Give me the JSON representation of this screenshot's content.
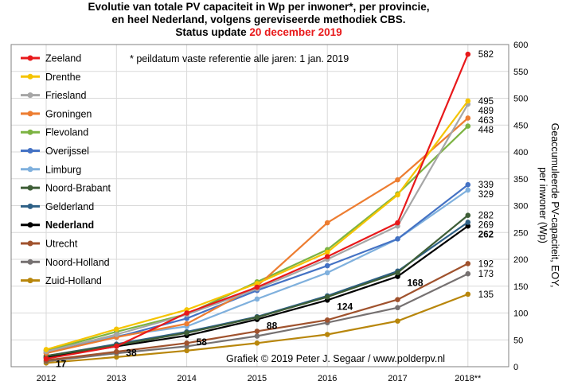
{
  "chart_data": {
    "type": "line",
    "title_lines": [
      "Evolutie van totale PV capaciteit in Wp per inwoner*, per provincie,",
      "en heel Nederland, volgens gereviseerde methodiek CBS.",
      "Status update "
    ],
    "title_date": "20 december 2019",
    "note": "* peildatum  vaste referentie alle jaren: 1 jan. 2019",
    "credit": "Grafiek  © 2019 Peter J. Segaar / www.polderpv.nl",
    "ylabel_lines": [
      "Geaccumuleerde  PV-capaciteit, EOY,",
      "per inwoner (Wp)"
    ],
    "x": [
      "2012",
      "2013",
      "2014",
      "2015",
      "2016",
      "2017",
      "2018**"
    ],
    "ylim": [
      0,
      600
    ],
    "yticks": [
      0,
      50,
      100,
      150,
      200,
      250,
      300,
      350,
      400,
      450,
      500,
      550,
      600
    ],
    "grid": true,
    "legend_position": "left",
    "series": [
      {
        "name": "Zeeland",
        "color": "#e8191b",
        "values": [
          15,
          38,
          100,
          148,
          205,
          268,
          582
        ],
        "end_label": "582"
      },
      {
        "name": "Drenthe",
        "color": "#f5c400",
        "values": [
          32,
          70,
          106,
          155,
          213,
          320,
          495
        ],
        "end_label": "495"
      },
      {
        "name": "Friesland",
        "color": "#a6a6a6",
        "values": [
          28,
          60,
          97,
          145,
          200,
          262,
          489
        ],
        "end_label": "489"
      },
      {
        "name": "Groningen",
        "color": "#ed7d31",
        "values": [
          25,
          55,
          80,
          150,
          268,
          348,
          463
        ],
        "end_label": "463"
      },
      {
        "name": "Flevoland",
        "color": "#7cb342",
        "values": [
          30,
          65,
          98,
          158,
          218,
          322,
          448
        ],
        "end_label": "448"
      },
      {
        "name": "Overijssel",
        "color": "#4472c4",
        "values": [
          26,
          55,
          90,
          142,
          188,
          238,
          339
        ],
        "end_label": "339"
      },
      {
        "name": "Limburg",
        "color": "#7fb0dd",
        "values": [
          30,
          57,
          75,
          126,
          175,
          238,
          329
        ],
        "end_label": "329"
      },
      {
        "name": "Noord-Brabant",
        "color": "#3e5e37",
        "values": [
          20,
          40,
          63,
          92,
          130,
          175,
          282
        ],
        "end_label": "282"
      },
      {
        "name": "Gelderland",
        "color": "#2e6086",
        "values": [
          20,
          42,
          65,
          93,
          132,
          178,
          269
        ],
        "end_label": "269"
      },
      {
        "name": "Nederland",
        "color": "#000000",
        "values": [
          17,
          38,
          58,
          88,
          124,
          168,
          262
        ],
        "end_label": "262",
        "bold": true,
        "value_labels": [
          "17",
          "38",
          "58",
          "88",
          "124",
          "168"
        ]
      },
      {
        "name": "Utrecht",
        "color": "#a0522d",
        "values": [
          12,
          28,
          44,
          66,
          87,
          125,
          192
        ],
        "end_label": "192"
      },
      {
        "name": "Noord-Holland",
        "color": "#767171",
        "values": [
          10,
          25,
          38,
          57,
          82,
          110,
          173
        ],
        "end_label": "173"
      },
      {
        "name": "Zuid-Holland",
        "color": "#b8860b",
        "values": [
          7,
          18,
          30,
          44,
          60,
          85,
          135
        ],
        "end_label": "135"
      }
    ]
  }
}
